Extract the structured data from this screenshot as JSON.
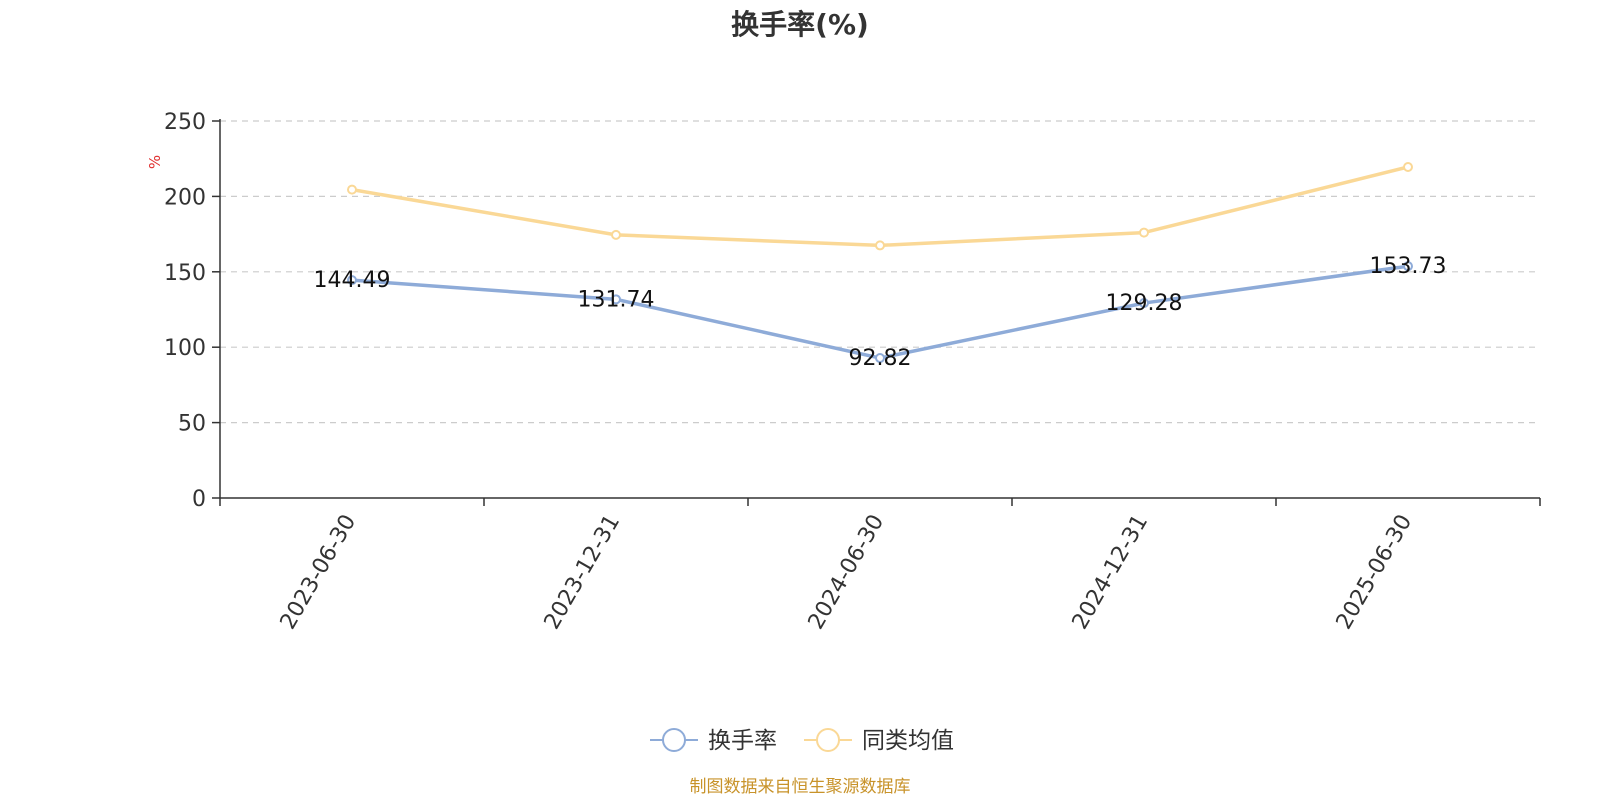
{
  "chart_data": {
    "type": "line",
    "title": "换手率(%)",
    "ylabel": "%",
    "categories": [
      "2023-06-30",
      "2023-12-31",
      "2024-06-30",
      "2024-12-31",
      "2025-06-30"
    ],
    "y_ticks": [
      "0",
      "50",
      "100",
      "150",
      "200",
      "250"
    ],
    "ylim": [
      0,
      250
    ],
    "grid": true,
    "legend_position": "bottom",
    "series": [
      {
        "name": "换手率",
        "values": [
          144.49,
          131.74,
          92.82,
          129.28,
          153.73
        ],
        "value_labels": [
          "144.49",
          "131.74",
          "92.82",
          "129.28",
          "153.73"
        ],
        "color": "#8eabd8",
        "show_labels": true
      },
      {
        "name": "同类均值",
        "values": [
          204.5,
          174.5,
          167.5,
          176,
          219.5
        ],
        "color": "#fad896",
        "show_labels": false
      }
    ]
  },
  "footer": {
    "source": "制图数据来自恒生聚源数据库"
  },
  "colors": {
    "unit_label": "#e03030",
    "source": "#c8932a",
    "axis": "#333333",
    "grid": "#cccccc"
  }
}
